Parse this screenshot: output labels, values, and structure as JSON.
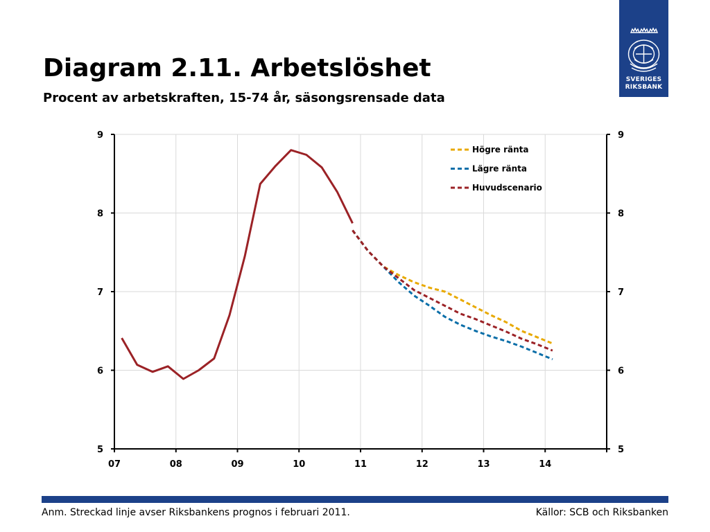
{
  "header": {
    "title": "Diagram 2.11. Arbetslöshet",
    "subtitle": "Procent av arbetskraften, 15-74 år, säsongsrensade data"
  },
  "logo": {
    "line1": "SVERIGES",
    "line2": "RIKSBANK"
  },
  "footer": {
    "note": "Anm. Streckad linje avser Riksbankens prognos i februari 2011.",
    "source": "Källor: SCB och Riksbanken"
  },
  "colors": {
    "accent": "#1c4189",
    "historical": "#9b2226",
    "hogre": "#e8a900",
    "lagre": "#0a6ea8",
    "huvud": "#9b2226"
  },
  "chart_data": {
    "type": "line",
    "xlim": [
      2007,
      2015
    ],
    "ylim": [
      5,
      9
    ],
    "xticks": [
      2007,
      2008,
      2009,
      2010,
      2011,
      2012,
      2013,
      2014
    ],
    "xtick_labels": [
      "07",
      "08",
      "09",
      "10",
      "11",
      "12",
      "13",
      "14"
    ],
    "yticks": [
      5,
      6,
      7,
      8,
      9
    ],
    "ytick_labels": [
      "5",
      "6",
      "7",
      "8",
      "9"
    ],
    "grid": true,
    "legend_position": "top-right",
    "series": [
      {
        "style": "solid",
        "color": "#9b2226",
        "x": [
          2007.12,
          2007.37,
          2007.62,
          2007.87,
          2008.12,
          2008.37,
          2008.62,
          2008.87,
          2009.12,
          2009.37,
          2009.62,
          2009.87,
          2010.12,
          2010.37,
          2010.62,
          2010.87
        ],
        "y": [
          6.41,
          6.07,
          5.98,
          6.05,
          5.89,
          6.0,
          6.15,
          6.7,
          7.45,
          8.37,
          8.6,
          8.8,
          8.74,
          8.58,
          8.27,
          7.87
        ]
      },
      {
        "name": "Högre ränta",
        "style": "dashed",
        "color": "#e8a900",
        "x": [
          2010.87,
          2011.12,
          2011.37,
          2011.62,
          2011.87,
          2012.12,
          2012.37,
          2012.62,
          2012.87,
          2013.12,
          2013.37,
          2013.62,
          2013.87,
          2014.12
        ],
        "y": [
          7.78,
          7.52,
          7.32,
          7.21,
          7.12,
          7.05,
          7.0,
          6.9,
          6.8,
          6.7,
          6.61,
          6.5,
          6.42,
          6.34
        ]
      },
      {
        "name": "Lägre ränta",
        "style": "dashed",
        "color": "#0a6ea8",
        "x": [
          2010.87,
          2011.12,
          2011.37,
          2011.62,
          2011.87,
          2012.12,
          2012.37,
          2012.62,
          2012.87,
          2013.12,
          2013.37,
          2013.62,
          2013.87,
          2014.12
        ],
        "y": [
          7.78,
          7.52,
          7.32,
          7.12,
          6.95,
          6.82,
          6.68,
          6.58,
          6.5,
          6.43,
          6.37,
          6.3,
          6.22,
          6.14
        ]
      },
      {
        "name": "Huvudscenario",
        "style": "dashed",
        "color": "#9b2226",
        "x": [
          2010.87,
          2011.12,
          2011.37,
          2011.62,
          2011.87,
          2012.12,
          2012.37,
          2012.62,
          2012.87,
          2013.12,
          2013.37,
          2013.62,
          2013.87,
          2014.12
        ],
        "y": [
          7.78,
          7.52,
          7.32,
          7.17,
          7.02,
          6.92,
          6.82,
          6.72,
          6.65,
          6.57,
          6.49,
          6.4,
          6.33,
          6.25
        ]
      }
    ]
  }
}
